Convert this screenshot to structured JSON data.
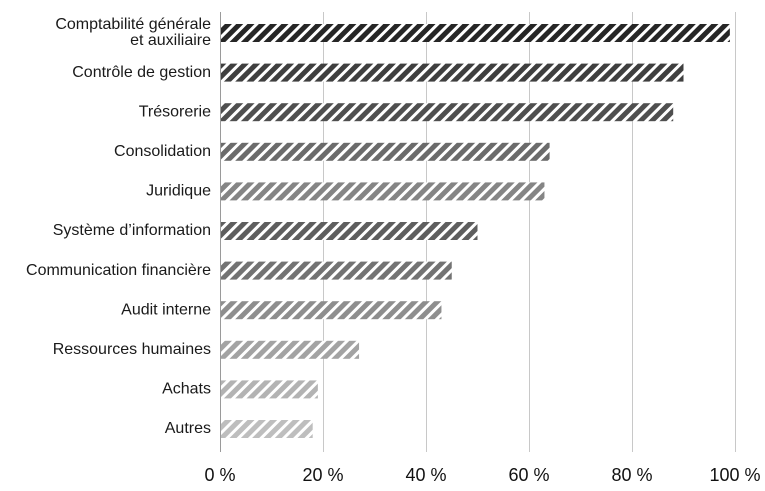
{
  "chart_data": {
    "type": "bar",
    "orientation": "horizontal",
    "title": "",
    "xlabel": "",
    "ylabel": "",
    "xlim": [
      0,
      100
    ],
    "grid": true,
    "legend": "none",
    "tick_values": [
      0,
      20,
      40,
      60,
      80,
      100
    ],
    "tick_labels": [
      "0 %",
      "20 %",
      "40 %",
      "60 %",
      "80 %",
      "100 %"
    ],
    "categories": [
      [
        "Comptabilité générale",
        "et auxiliaire"
      ],
      [
        "Contrôle de gestion"
      ],
      [
        "Trésorerie"
      ],
      [
        "Consolidation"
      ],
      [
        "Juridique"
      ],
      [
        "Système d’information"
      ],
      [
        "Communication financière"
      ],
      [
        "Audit interne"
      ],
      [
        "Ressources humaines"
      ],
      [
        "Achats"
      ],
      [
        "Autres"
      ]
    ],
    "values": [
      99,
      90,
      88,
      64,
      63,
      50,
      45,
      43,
      27,
      19,
      18
    ],
    "bar_colors": [
      "#262626",
      "#3f3f3f",
      "#4f4f4f",
      "#6b6b6b",
      "#858585",
      "#5e5e5e",
      "#737373",
      "#8e8e8e",
      "#a3a3a3",
      "#b3b3b3",
      "#bebebe"
    ],
    "hatch": "diagonal"
  }
}
